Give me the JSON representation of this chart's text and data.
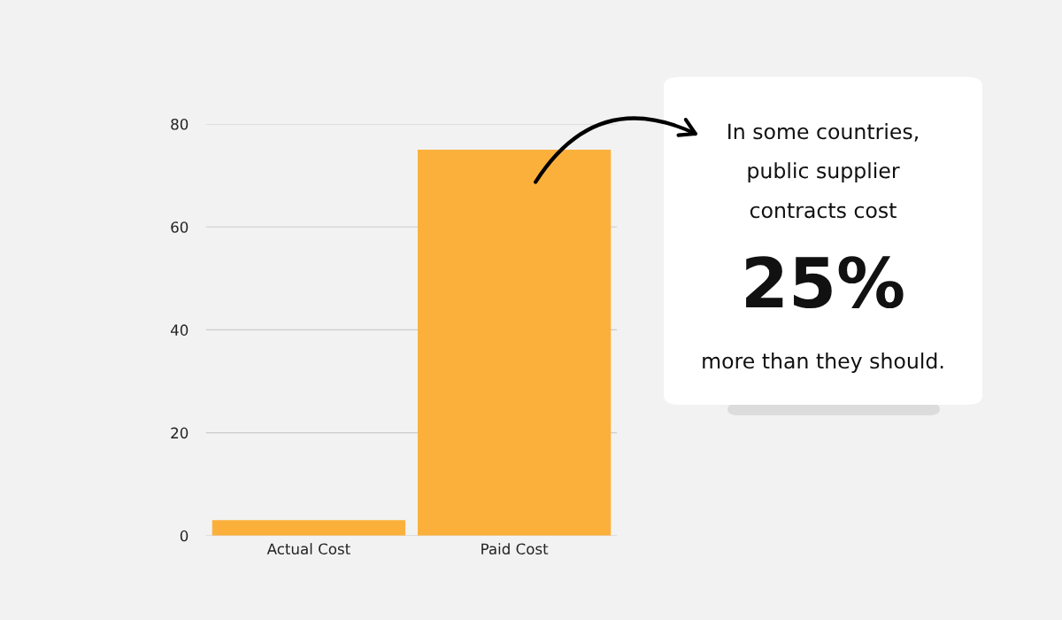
{
  "chart_data": {
    "type": "bar",
    "categories": [
      "Actual Cost",
      "Paid Cost"
    ],
    "values": [
      3,
      75
    ],
    "color": "#fbb03b",
    "ylim": [
      0,
      80
    ],
    "yticks": [
      0,
      20,
      40,
      60,
      80
    ],
    "grid": "y",
    "annotations": [
      "In some countries,",
      "public supplier",
      "contracts cost",
      "25%",
      "more than they should."
    ]
  }
}
